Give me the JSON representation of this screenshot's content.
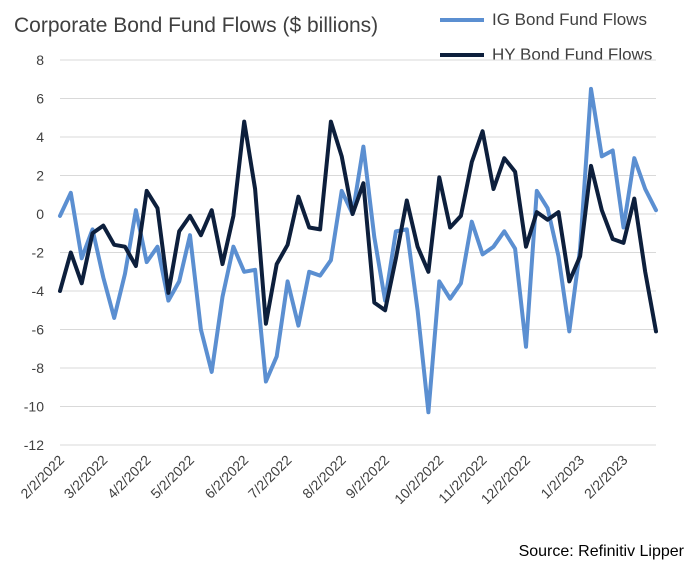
{
  "chart_data": {
    "type": "line",
    "title": "Corporate Bond Fund Flows ($ billions)",
    "source": "Source: Refinitiv Lipper",
    "xlabel": "",
    "ylabel": "",
    "ylim": [
      -12,
      8
    ],
    "yticks": [
      8,
      6,
      4,
      2,
      0,
      -2,
      -4,
      -6,
      -8,
      -10,
      -12
    ],
    "grid": true,
    "legend_position": "top-right",
    "x_ticks": [
      {
        "label": "2/2/2022",
        "index": 0
      },
      {
        "label": "3/2/2022",
        "index": 4
      },
      {
        "label": "4/2/2022",
        "index": 8
      },
      {
        "label": "5/2/2022",
        "index": 12
      },
      {
        "label": "6/2/2022",
        "index": 17
      },
      {
        "label": "7/2/2022",
        "index": 21
      },
      {
        "label": "8/2/2022",
        "index": 26
      },
      {
        "label": "9/2/2022",
        "index": 30
      },
      {
        "label": "10/2/2022",
        "index": 35
      },
      {
        "label": "11/2/2022",
        "index": 39
      },
      {
        "label": "12/2/2022",
        "index": 43
      },
      {
        "label": "1/2/2023",
        "index": 48
      },
      {
        "label": "2/2/2023",
        "index": 52
      }
    ],
    "series": [
      {
        "name": "IG Bond Fund Flows",
        "color": "#5b8fd1",
        "values": [
          -0.1,
          1.1,
          -2.3,
          -0.8,
          -3.3,
          -5.4,
          -3.1,
          0.2,
          -2.5,
          -1.7,
          -4.5,
          -3.5,
          -1.1,
          -6.0,
          -8.2,
          -4.3,
          -1.7,
          -3.0,
          -2.9,
          -8.7,
          -7.4,
          -3.5,
          -5.8,
          -3.0,
          -3.2,
          -2.4,
          1.2,
          0.0,
          3.5,
          -1.2,
          -4.5,
          -0.9,
          -0.8,
          -5.0,
          -10.3,
          -3.5,
          -4.4,
          -3.6,
          -0.4,
          -2.1,
          -1.7,
          -0.9,
          -1.8,
          -6.9,
          1.2,
          0.3,
          -2.2,
          -6.1,
          -1.8,
          6.5,
          3.0,
          3.3,
          -0.7,
          2.9,
          1.3,
          0.2
        ]
      },
      {
        "name": "HY Bond Fund Flows",
        "color": "#0d1f3c",
        "values": [
          -4.0,
          -2.0,
          -3.6,
          -1.0,
          -0.6,
          -1.6,
          -1.7,
          -2.7,
          1.2,
          0.3,
          -4.1,
          -0.9,
          -0.1,
          -1.1,
          0.2,
          -2.6,
          -0.1,
          4.8,
          1.3,
          -5.7,
          -2.6,
          -1.6,
          0.9,
          -0.7,
          -0.8,
          4.8,
          3.0,
          0.0,
          1.6,
          -4.6,
          -5.0,
          -2.3,
          0.7,
          -1.7,
          -3.0,
          1.9,
          -0.7,
          -0.1,
          2.7,
          4.3,
          1.3,
          2.9,
          2.2,
          -1.7,
          0.1,
          -0.3,
          0.1,
          -3.5,
          -2.2,
          2.5,
          0.2,
          -1.3,
          -1.5,
          0.8,
          -3.0,
          -6.1
        ]
      }
    ]
  }
}
